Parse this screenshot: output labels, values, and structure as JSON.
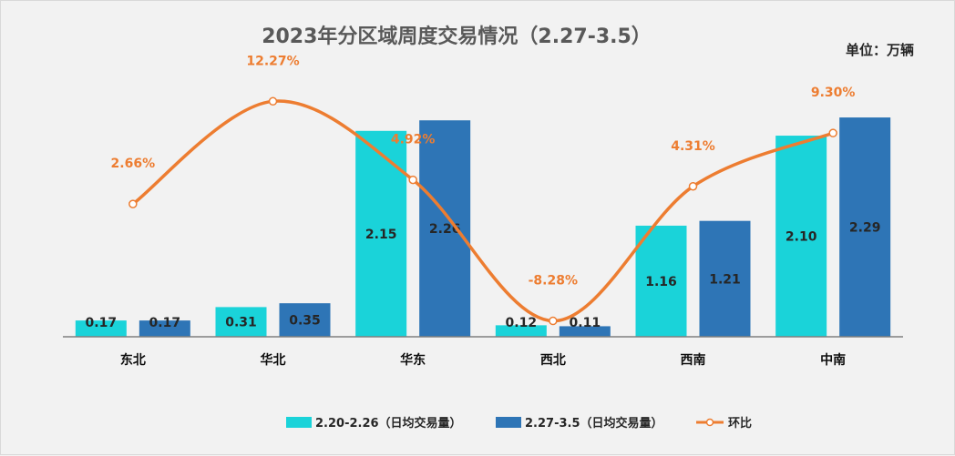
{
  "chart_data": {
    "type": "bar",
    "title": "2023年分区域周度交易情况（2.27-3.5）",
    "unit_label": "单位：万辆",
    "categories": [
      "东北",
      "华北",
      "华东",
      "西北",
      "西南",
      "中南"
    ],
    "series": [
      {
        "name": "2.20-2.26（日均交易量）",
        "type": "bar",
        "color": "#1ad3d9",
        "values": [
          0.17,
          0.31,
          2.15,
          0.12,
          1.16,
          2.1
        ],
        "labels": [
          "0.17",
          "0.31",
          "2.15",
          "0.12",
          "1.16",
          "2.10"
        ]
      },
      {
        "name": "2.27-3.5（日均交易量）",
        "type": "bar",
        "color": "#2e75b6",
        "values": [
          0.17,
          0.35,
          2.26,
          0.11,
          1.21,
          2.29
        ],
        "labels": [
          "0.17",
          "0.35",
          "2.26",
          "0.11",
          "1.21",
          "2.29"
        ]
      },
      {
        "name": "环比",
        "type": "line",
        "color": "#ed7d31",
        "axis": "secondary",
        "values": [
          2.66,
          12.27,
          4.92,
          -8.28,
          4.31,
          9.3
        ],
        "labels": [
          "2.66%",
          "12.27%",
          "4.92%",
          "-8.28%",
          "4.31%",
          "9.30%"
        ]
      }
    ],
    "ylim": [
      0,
      2.3
    ],
    "y2lim": [
      -9,
      14
    ],
    "grid": false,
    "legend": "bottom"
  }
}
